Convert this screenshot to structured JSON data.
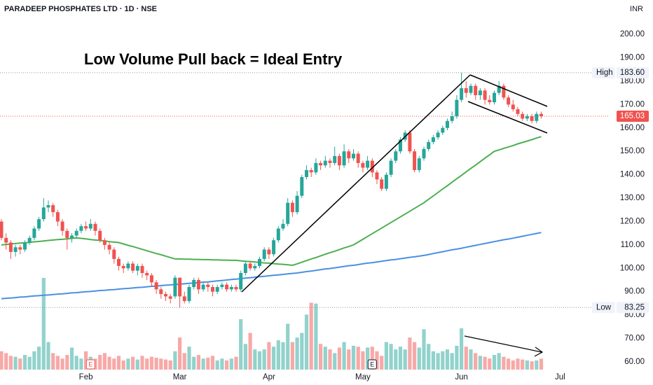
{
  "chart_data": {
    "type": "candlestick",
    "title": "PARADEEP PHOSPHATES LTD · 1D · NSE",
    "currency": "INR",
    "annotation": "Low Volume Pull back = Ideal Entry",
    "up_color": "#26a69a",
    "down_color": "#ef5350",
    "ylim": [
      56.1,
      214.7
    ],
    "yticks": [
      {
        "value": 60,
        "label": "60.00"
      },
      {
        "value": 70,
        "label": "70.00"
      },
      {
        "value": 80,
        "label": "80.00"
      },
      {
        "value": 90,
        "label": "90.00"
      },
      {
        "value": 100,
        "label": "100.00"
      },
      {
        "value": 110,
        "label": "110.00"
      },
      {
        "value": 120,
        "label": "120.00"
      },
      {
        "value": 130,
        "label": "130.00"
      },
      {
        "value": 140,
        "label": "140.00"
      },
      {
        "value": 150,
        "label": "150.00"
      },
      {
        "value": 160,
        "label": "160.00"
      },
      {
        "value": 170,
        "label": "170.00"
      },
      {
        "value": 180,
        "label": "180.00"
      },
      {
        "value": 190,
        "label": "190.00"
      },
      {
        "value": 200,
        "label": "200.00"
      }
    ],
    "high": {
      "label": "High",
      "value": 183.6,
      "value_label": "183.60"
    },
    "low": {
      "label": "Low",
      "value": 83.25,
      "value_label": "83.25"
    },
    "last": {
      "value": 165.03,
      "value_label": "165.03"
    },
    "earnings_markers": {
      "label": "E",
      "at": [
        19,
        79
      ]
    },
    "categories": [
      null,
      null,
      null,
      null,
      null,
      null,
      null,
      null,
      null,
      null,
      null,
      null,
      null,
      null,
      null,
      null,
      null,
      null,
      "Feb",
      null,
      null,
      null,
      null,
      null,
      null,
      null,
      null,
      null,
      null,
      null,
      null,
      null,
      null,
      null,
      null,
      null,
      null,
      null,
      "Mar",
      null,
      null,
      null,
      null,
      null,
      null,
      null,
      null,
      null,
      null,
      null,
      null,
      null,
      null,
      null,
      null,
      null,
      null,
      "Apr",
      null,
      null,
      null,
      null,
      null,
      null,
      null,
      null,
      null,
      null,
      null,
      null,
      null,
      null,
      null,
      null,
      null,
      null,
      null,
      "May",
      null,
      null,
      null,
      null,
      null,
      null,
      null,
      null,
      null,
      null,
      null,
      null,
      null,
      null,
      null,
      null,
      null,
      null,
      null,
      null,
      "Jun",
      null,
      null,
      null,
      null,
      null,
      null,
      null,
      null,
      null,
      null,
      null,
      null,
      null,
      null,
      null,
      null,
      null,
      null,
      null,
      null,
      "Jul",
      null,
      null,
      null,
      null,
      null,
      null,
      null,
      null,
      null
    ],
    "ohlc": [
      [
        120,
        121,
        112,
        113
      ],
      [
        113,
        115,
        108,
        111
      ],
      [
        111,
        112,
        104,
        107
      ],
      [
        107,
        110,
        105,
        109
      ],
      [
        109,
        110,
        106,
        108
      ],
      [
        108,
        112,
        107,
        111
      ],
      [
        111,
        114,
        110,
        113
      ],
      [
        113,
        118,
        112,
        117
      ],
      [
        117,
        122,
        116,
        121
      ],
      [
        121,
        130,
        120,
        126
      ],
      [
        126,
        129,
        124,
        127
      ],
      [
        127,
        128,
        122,
        124
      ],
      [
        124,
        125,
        118,
        120
      ],
      [
        120,
        121,
        114,
        116
      ],
      [
        116,
        117,
        108,
        113
      ],
      [
        113,
        115,
        111,
        114
      ],
      [
        114,
        117,
        113,
        116
      ],
      [
        116,
        119,
        115,
        118
      ],
      [
        118,
        120,
        116,
        117
      ],
      [
        117,
        121,
        116,
        119
      ],
      [
        119,
        120,
        114,
        116
      ],
      [
        116,
        117,
        111,
        112
      ],
      [
        112,
        113,
        108,
        110
      ],
      [
        110,
        111,
        106,
        108
      ],
      [
        108,
        109,
        102,
        104
      ],
      [
        104,
        105,
        99,
        101
      ],
      [
        101,
        102,
        98,
        100
      ],
      [
        100,
        103,
        99,
        102
      ],
      [
        102,
        103,
        98,
        99
      ],
      [
        99,
        102,
        97,
        101
      ],
      [
        101,
        102,
        96,
        98
      ],
      [
        98,
        99,
        95,
        97
      ],
      [
        97,
        98,
        92,
        94
      ],
      [
        94,
        95,
        89,
        91
      ],
      [
        91,
        92,
        87,
        89
      ],
      [
        89,
        90,
        86,
        88
      ],
      [
        88,
        89,
        85,
        87
      ],
      [
        88,
        97,
        87,
        96
      ],
      [
        96,
        96,
        83.25,
        88
      ],
      [
        88,
        90,
        85,
        86
      ],
      [
        86,
        93,
        85,
        92
      ],
      [
        92,
        96,
        91,
        95
      ],
      [
        95,
        96,
        89,
        91
      ],
      [
        91,
        94,
        90,
        93
      ],
      [
        93,
        94,
        90,
        92
      ],
      [
        92,
        93,
        88,
        90
      ],
      [
        90,
        93,
        89,
        92
      ],
      [
        92,
        94,
        91,
        93
      ],
      [
        93,
        94,
        90,
        91
      ],
      [
        91,
        93,
        90,
        92
      ],
      [
        92,
        93,
        90,
        91
      ],
      [
        91,
        99,
        90,
        98
      ],
      [
        98,
        103,
        97,
        102
      ],
      [
        102,
        103,
        99,
        100
      ],
      [
        100,
        102,
        99,
        101
      ],
      [
        101,
        105,
        100,
        104
      ],
      [
        104,
        109,
        103,
        108
      ],
      [
        108,
        109,
        104,
        106
      ],
      [
        106,
        113,
        105,
        112
      ],
      [
        112,
        118,
        111,
        117
      ],
      [
        117,
        121,
        116,
        119
      ],
      [
        119,
        130,
        118,
        128
      ],
      [
        128,
        129,
        122,
        124
      ],
      [
        124,
        133,
        123,
        131
      ],
      [
        131,
        140,
        130,
        139
      ],
      [
        139,
        144,
        138,
        142
      ],
      [
        142,
        143,
        139,
        141
      ],
      [
        141,
        147,
        140,
        145
      ],
      [
        145,
        146,
        142,
        144
      ],
      [
        144,
        148,
        143,
        146
      ],
      [
        146,
        147,
        143,
        145
      ],
      [
        145,
        152,
        144,
        148
      ],
      [
        148,
        149,
        142,
        144
      ],
      [
        144,
        153,
        143,
        150
      ],
      [
        150,
        151,
        145,
        147
      ],
      [
        147,
        151,
        146,
        149
      ],
      [
        149,
        150,
        143,
        145
      ],
      [
        145,
        146,
        141,
        143
      ],
      [
        143,
        148,
        142,
        146
      ],
      [
        146,
        147,
        139,
        141
      ],
      [
        141,
        142,
        136,
        138
      ],
      [
        138,
        139,
        133,
        134
      ],
      [
        134,
        141,
        133,
        140
      ],
      [
        140,
        147,
        139,
        146
      ],
      [
        146,
        151,
        145,
        150
      ],
      [
        150,
        156,
        149,
        155
      ],
      [
        155,
        159,
        154,
        158
      ],
      [
        158,
        159,
        149,
        150
      ],
      [
        150,
        151,
        141,
        142
      ],
      [
        142,
        148,
        141,
        147
      ],
      [
        147,
        152,
        146,
        151
      ],
      [
        151,
        155,
        150,
        154
      ],
      [
        154,
        157,
        153,
        156
      ],
      [
        156,
        159,
        155,
        158
      ],
      [
        158,
        161,
        157,
        160
      ],
      [
        160,
        164,
        159,
        163
      ],
      [
        163,
        167,
        162,
        165
      ],
      [
        165,
        174,
        164,
        172
      ],
      [
        172,
        183.6,
        171,
        177
      ],
      [
        177,
        180,
        173,
        175
      ],
      [
        175,
        179,
        174,
        178
      ],
      [
        178,
        179,
        172,
        174
      ],
      [
        174,
        177,
        172,
        176
      ],
      [
        176,
        177,
        170,
        172
      ],
      [
        172,
        174,
        170,
        171
      ],
      [
        171,
        176,
        170,
        175
      ],
      [
        175,
        180,
        174,
        178
      ],
      [
        178,
        179,
        172,
        173
      ],
      [
        173,
        174,
        169,
        170
      ],
      [
        170,
        172,
        167,
        168
      ],
      [
        168,
        169,
        165,
        166
      ],
      [
        166,
        167,
        163,
        164
      ],
      [
        164,
        166,
        163,
        165
      ],
      [
        165,
        166,
        162,
        163
      ],
      [
        163,
        167,
        162,
        166
      ],
      [
        166,
        167,
        164,
        165.03
      ],
      null,
      null,
      null,
      null,
      null,
      null,
      null,
      null,
      null,
      null,
      null,
      null,
      null
    ],
    "volume": [
      20,
      18,
      15,
      14,
      12,
      16,
      14,
      20,
      25,
      100,
      30,
      18,
      15,
      12,
      16,
      24,
      15,
      12,
      20,
      14,
      12,
      16,
      18,
      14,
      12,
      15,
      10,
      12,
      14,
      11,
      15,
      12,
      14,
      13,
      12,
      11,
      10,
      20,
      35,
      18,
      25,
      14,
      16,
      12,
      13,
      15,
      10,
      12,
      10,
      12,
      14,
      55,
      28,
      40,
      22,
      20,
      22,
      30,
      25,
      32,
      30,
      50,
      30,
      35,
      40,
      60,
      73,
      72,
      28,
      25,
      22,
      18,
      24,
      30,
      22,
      26,
      25,
      20,
      24,
      25,
      20,
      15,
      30,
      28,
      22,
      25,
      22,
      35,
      30,
      24,
      44,
      28,
      20,
      18,
      20,
      22,
      18,
      26,
      45,
      25,
      22,
      18,
      15,
      14,
      12,
      16,
      18,
      14,
      12,
      10,
      12,
      11,
      10,
      9,
      10,
      12,
      null,
      null,
      null,
      null,
      null,
      null,
      null,
      null,
      null,
      null,
      null,
      null,
      null
    ],
    "moving_averages": [
      {
        "color": "#4caf50",
        "values": [
          110,
          110.2,
          110.4,
          110.6,
          110.8,
          110.9,
          111.1,
          111.3,
          111.5,
          111.7,
          111.9,
          112.1,
          112.3,
          112.4,
          112.6,
          112.8,
          113,
          112.8,
          112.6,
          112.3,
          112.1,
          111.9,
          111.7,
          111.4,
          111.2,
          111,
          110.4,
          109.8,
          109.3,
          108.7,
          108.1,
          107.5,
          106.9,
          106.3,
          105.8,
          105.2,
          104.6,
          104,
          104,
          103.9,
          103.9,
          103.8,
          103.8,
          103.7,
          103.7,
          103.6,
          103.6,
          103.5,
          103.5,
          103.4,
          103.4,
          103.2,
          103,
          102.9,
          102.7,
          102.5,
          102.3,
          102.2,
          102,
          101.8,
          101.7,
          101.5,
          101.3,
          101.9,
          102.6,
          103.3,
          104,
          104.6,
          105.3,
          106,
          106.7,
          107.3,
          108,
          108.7,
          109.3,
          110,
          111.2,
          112.4,
          113.6,
          114.8,
          116,
          117.2,
          118.4,
          119.6,
          120.8,
          122,
          123.2,
          124.4,
          125.6,
          126.8,
          128,
          129.5,
          130.9,
          132.4,
          133.9,
          135.3,
          136.8,
          138.3,
          139.7,
          141.2,
          142.7,
          144.1,
          145.6,
          147.1,
          148.5,
          150,
          150.6,
          151.3,
          151.9,
          152.5,
          153.2,
          153.8,
          154.4,
          155.0,
          155.7,
          156.3,
          null,
          null,
          null,
          null,
          null,
          null,
          null,
          null,
          null,
          null,
          null,
          null,
          null
        ]
      },
      {
        "color": "#4a90e2",
        "values": [
          87,
          87.2,
          87.3,
          87.5,
          87.7,
          87.8,
          88,
          88.2,
          88.3,
          88.5,
          88.6,
          88.8,
          89,
          89.1,
          89.3,
          89.5,
          89.6,
          89.8,
          90,
          90.1,
          90.3,
          90.5,
          90.6,
          90.8,
          90.9,
          91.1,
          91.3,
          91.4,
          91.6,
          91.8,
          91.9,
          92.1,
          92.3,
          92.4,
          92.6,
          92.8,
          92.9,
          93.1,
          93.2,
          93.4,
          93.6,
          93.7,
          93.9,
          94.1,
          94.2,
          94.4,
          94.6,
          94.8,
          95,
          95.2,
          95.4,
          95.6,
          95.8,
          96,
          96.2,
          96.4,
          96.6,
          96.8,
          97,
          97.2,
          97.4,
          97.6,
          97.8,
          98,
          98.3,
          98.6,
          98.8,
          99.1,
          99.4,
          99.7,
          99.9,
          100.2,
          100.5,
          100.8,
          101.1,
          101.3,
          101.6,
          101.9,
          102.2,
          102.4,
          102.7,
          103,
          103.3,
          103.6,
          103.8,
          104.1,
          104.4,
          104.7,
          104.9,
          105.2,
          105.5,
          105.9,
          106.3,
          106.7,
          107.1,
          107.5,
          107.9,
          108.2,
          108.6,
          109,
          109.4,
          109.8,
          110.2,
          110.6,
          111,
          111.4,
          111.8,
          112.2,
          112.5,
          112.9,
          113.3,
          113.7,
          114.1,
          114.5,
          114.9,
          115.3,
          null,
          null,
          null,
          null,
          null,
          null,
          null,
          null,
          null,
          null,
          null,
          null,
          null
        ]
      }
    ]
  }
}
